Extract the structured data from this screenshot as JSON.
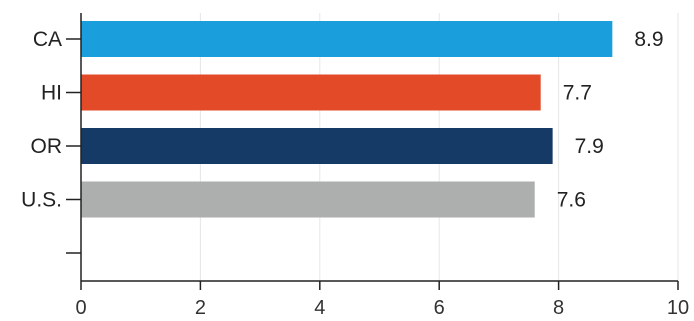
{
  "chart_data": {
    "type": "bar",
    "orientation": "horizontal",
    "categories": [
      "CA",
      "HI",
      "OR",
      "U.S.",
      ""
    ],
    "values": [
      8.9,
      7.7,
      7.9,
      7.6,
      null
    ],
    "value_labels": [
      "8.9",
      "7.7",
      "7.9",
      "7.6",
      ""
    ],
    "colors": [
      "#1a9fdc",
      "#e24a28",
      "#163a66",
      "#adaeae",
      null
    ],
    "xlim": [
      0,
      10
    ],
    "x_ticks": [
      0,
      2,
      4,
      6,
      8,
      10
    ],
    "grid": true,
    "title": "",
    "xlabel": "",
    "ylabel": ""
  }
}
